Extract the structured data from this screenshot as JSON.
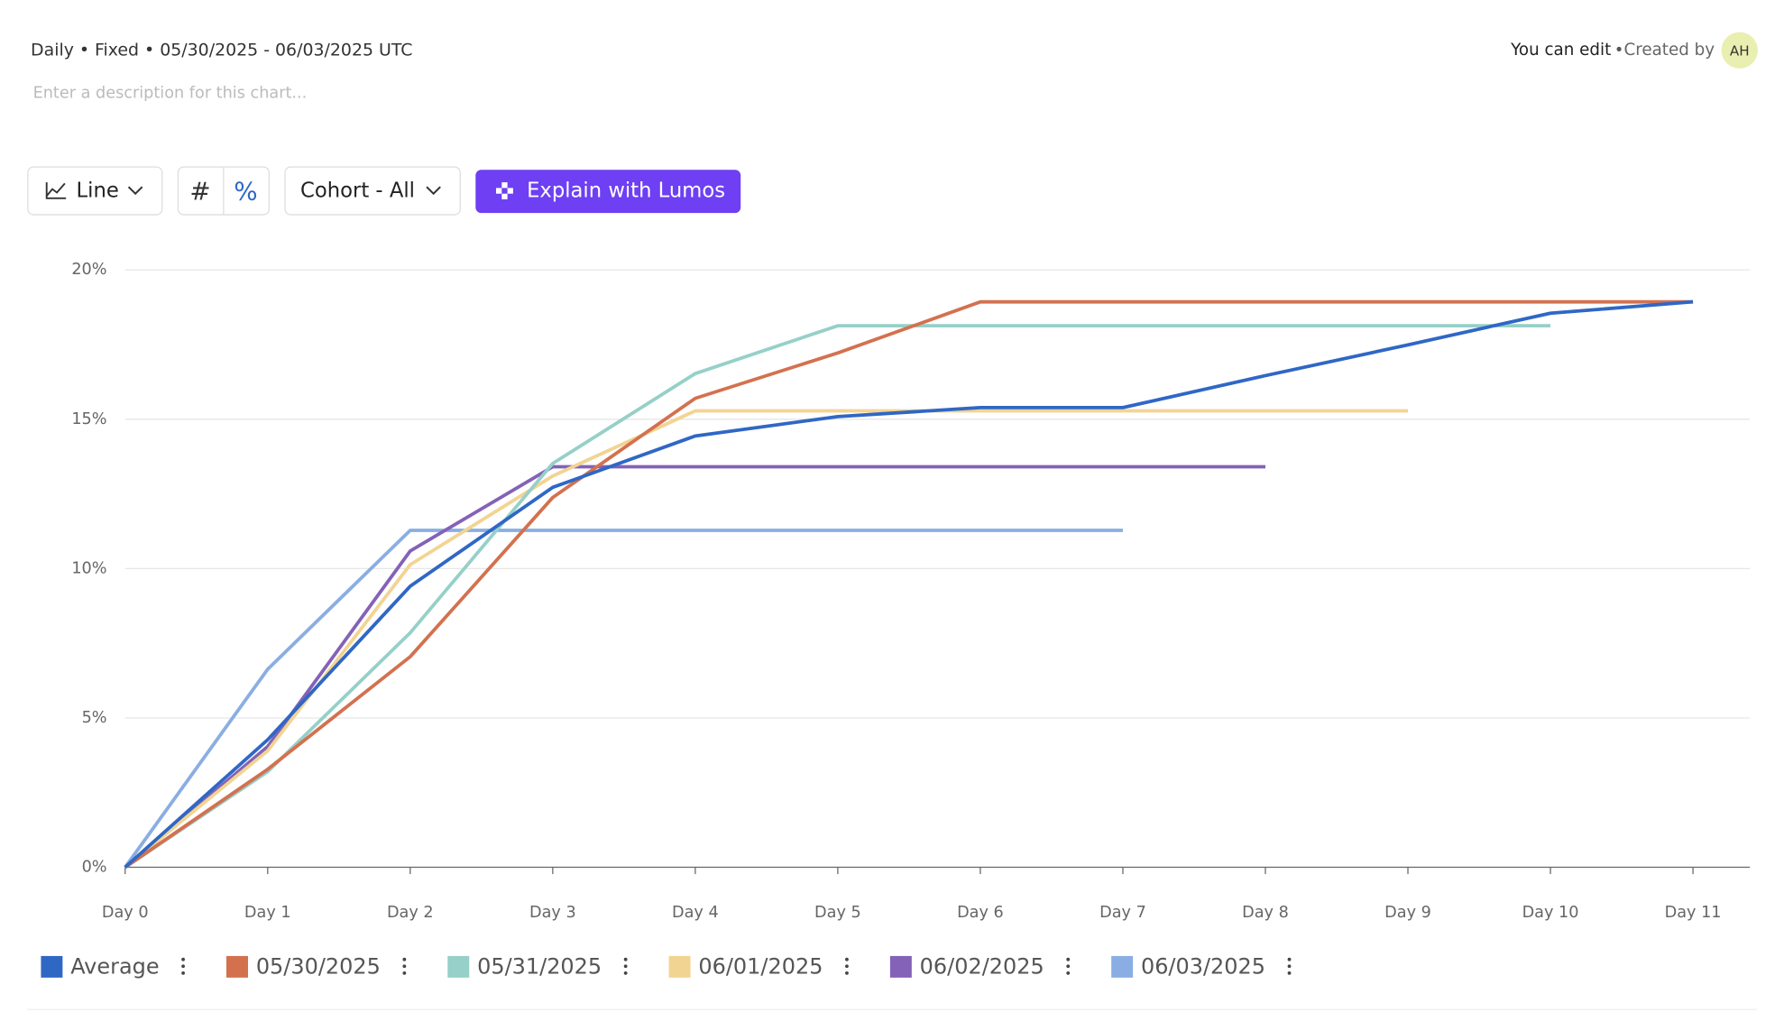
{
  "header": {
    "range": "Daily • Fixed • 05/30/2025 - 06/03/2025 UTC",
    "description_placeholder": "Enter a description for this chart...",
    "edit": "You can edit",
    "separator": "•",
    "created_by": "Created by",
    "avatar": "AH"
  },
  "toolbar": {
    "chart_type": "Line",
    "count": "#",
    "percent": "%",
    "cohort": "Cohort - All",
    "explain": "Explain with Lumos"
  },
  "chart_data": {
    "type": "line",
    "categories": [
      "Day 0",
      "Day 1",
      "Day 2",
      "Day 3",
      "Day 4",
      "Day 5",
      "Day 6",
      "Day 7",
      "Day 8",
      "Day 9",
      "Day 10",
      "Day 11"
    ],
    "ylim": [
      0,
      20
    ],
    "yticks": [
      {
        "value": 0,
        "label": "0%"
      },
      {
        "value": 5,
        "label": "5%"
      },
      {
        "value": 10,
        "label": "10%"
      },
      {
        "value": 15,
        "label": "15%"
      },
      {
        "value": 20,
        "label": "20%"
      }
    ],
    "grid": true,
    "legend": "bottom",
    "series": [
      {
        "name": "Average",
        "color": "#2f67c5",
        "values": [
          0,
          4.27,
          9.41,
          12.72,
          14.44,
          15.09,
          15.39,
          15.39,
          16.46,
          17.49,
          18.55,
          18.93
        ]
      },
      {
        "name": "05/30/2025",
        "color": "#d3714f",
        "values": [
          0,
          3.28,
          7.05,
          12.38,
          15.7,
          17.22,
          18.93,
          18.93,
          18.93,
          18.93,
          18.93,
          18.93
        ]
      },
      {
        "name": "05/31/2025",
        "color": "#96d0c8",
        "values": [
          0,
          3.2,
          7.85,
          13.52,
          16.53,
          18.13,
          18.13,
          18.13,
          18.13,
          18.13,
          18.13,
          null
        ]
      },
      {
        "name": "06/01/2025",
        "color": "#f2d492",
        "values": [
          0,
          3.9,
          10.13,
          13.1,
          15.28,
          15.28,
          15.28,
          15.28,
          15.28,
          15.28,
          null,
          null
        ]
      },
      {
        "name": "06/02/2025",
        "color": "#8462b7",
        "values": [
          0,
          4.04,
          10.59,
          13.41,
          13.41,
          13.41,
          13.41,
          13.41,
          13.41,
          null,
          null,
          null
        ]
      },
      {
        "name": "06/03/2025",
        "color": "#8aaee3",
        "values": [
          0,
          6.63,
          11.28,
          11.28,
          11.28,
          11.28,
          11.28,
          11.28,
          null,
          null,
          null,
          null
        ]
      }
    ]
  }
}
